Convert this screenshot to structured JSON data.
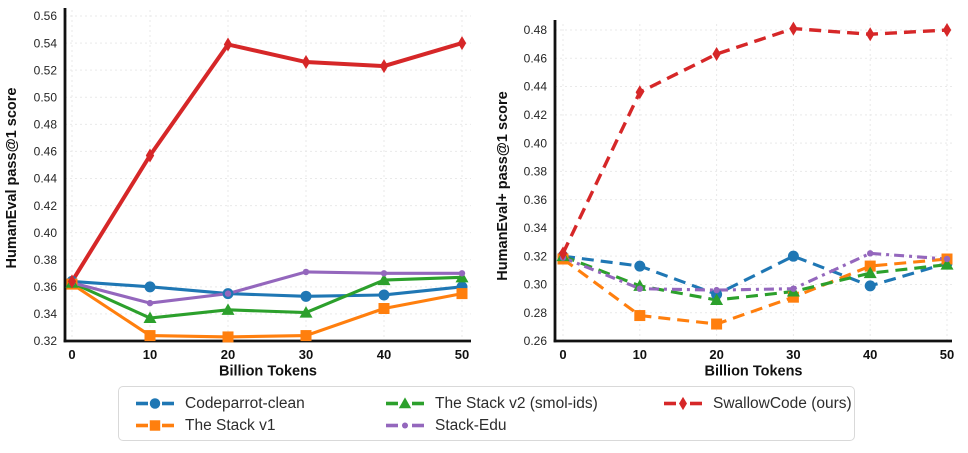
{
  "figure": {
    "legend": {
      "items": [
        {
          "label": "Codeparrot-clean",
          "color": "#1f77b4",
          "marker": "circle"
        },
        {
          "label": "The Stack v1",
          "color": "#ff7f0e",
          "marker": "square"
        },
        {
          "label": "The Stack v2 (smol-ids)",
          "color": "#2ca02c",
          "marker": "triangle"
        },
        {
          "label": "Stack-Edu",
          "color": "#9467bd",
          "marker": "dot"
        },
        {
          "label": "SwallowCode (ours)",
          "color": "#d62728",
          "marker": "diamond"
        }
      ],
      "position": "bottom"
    },
    "colors": {
      "axis": "#111111",
      "grid": "#e9e9e9",
      "tick_text": "#262626"
    }
  },
  "chart_data": [
    {
      "type": "line",
      "title": "",
      "xlabel": "Billion Tokens",
      "ylabel": "HumanEval pass@1 score",
      "x": [
        0,
        10,
        20,
        30,
        40,
        50
      ],
      "xlim": [
        0,
        50
      ],
      "ylim": [
        0.32,
        0.56
      ],
      "ytick_step": 0.02,
      "grid": true,
      "line_style": "solid",
      "series": [
        {
          "name": "Codeparrot-clean",
          "color": "#1f77b4",
          "marker": "circle",
          "values": [
            0.364,
            0.36,
            0.355,
            0.353,
            0.354,
            0.36
          ]
        },
        {
          "name": "The Stack v1",
          "color": "#ff7f0e",
          "marker": "square",
          "values": [
            0.362,
            0.324,
            0.323,
            0.324,
            0.344,
            0.355
          ]
        },
        {
          "name": "The Stack v2 (smol-ids)",
          "color": "#2ca02c",
          "marker": "triangle",
          "values": [
            0.363,
            0.337,
            0.343,
            0.341,
            0.365,
            0.367
          ]
        },
        {
          "name": "Stack-Edu",
          "color": "#9467bd",
          "marker": "dot",
          "values": [
            0.363,
            0.348,
            0.355,
            0.371,
            0.37,
            0.37
          ]
        },
        {
          "name": "SwallowCode (ours)",
          "color": "#d62728",
          "marker": "diamond",
          "values": [
            0.364,
            0.457,
            0.539,
            0.526,
            0.523,
            0.54
          ]
        }
      ]
    },
    {
      "type": "line",
      "title": "",
      "xlabel": "Billion Tokens",
      "ylabel": "HumanEval+ pass@1 score",
      "x": [
        0,
        10,
        20,
        30,
        40,
        50
      ],
      "xlim": [
        0,
        50
      ],
      "ylim": [
        0.26,
        0.48
      ],
      "ytick_step": 0.02,
      "grid": true,
      "line_style": "dashed",
      "series": [
        {
          "name": "Codeparrot-clean",
          "color": "#1f77b4",
          "marker": "circle",
          "values": [
            0.32,
            0.313,
            0.293,
            0.32,
            0.299,
            0.315
          ]
        },
        {
          "name": "The Stack v1",
          "color": "#ff7f0e",
          "marker": "square",
          "values": [
            0.318,
            0.278,
            0.272,
            0.291,
            0.313,
            0.318
          ]
        },
        {
          "name": "The Stack v2 (smol-ids)",
          "color": "#2ca02c",
          "marker": "triangle",
          "values": [
            0.32,
            0.299,
            0.289,
            0.295,
            0.308,
            0.314
          ]
        },
        {
          "name": "Stack-Edu",
          "color": "#9467bd",
          "marker": "dot",
          "values": [
            0.319,
            0.297,
            0.296,
            0.297,
            0.322,
            0.318
          ]
        },
        {
          "name": "SwallowCode (ours)",
          "color": "#d62728",
          "marker": "diamond",
          "values": [
            0.322,
            0.436,
            0.463,
            0.481,
            0.477,
            0.48
          ]
        }
      ]
    }
  ]
}
